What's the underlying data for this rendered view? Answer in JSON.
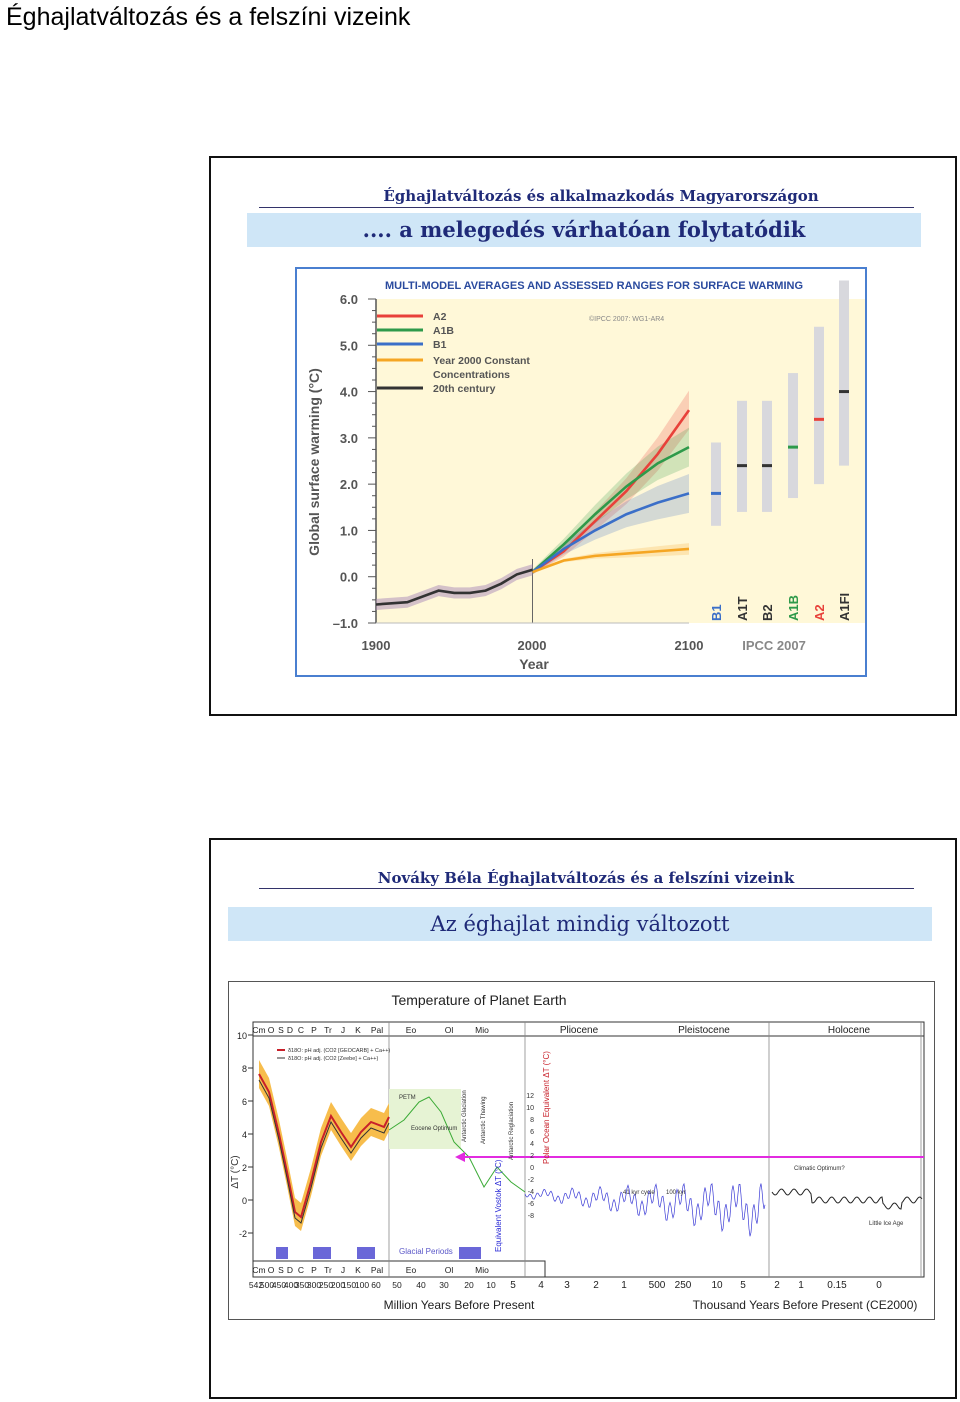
{
  "page_title": "Éghajlatváltozás és a felszíni vizeink",
  "slide1": {
    "header": "Éghajlatváltozás és alkalmazkodás Magyarországon",
    "banner": ".... a melegedés várhatóan folytatódik"
  },
  "slide2": {
    "header": "Nováky Béla Éghajlatváltozás és a felszíni vizeink",
    "banner": "Az éghajlat mindig változott"
  },
  "chart_data": [
    {
      "type": "line",
      "title": "MULTI-MODEL AVERAGES AND ASSESSED RANGES FOR SURFACE WARMING",
      "copyright": "©IPCC 2007: WG1-AR4",
      "source": "IPCC 2007",
      "xlabel": "Year",
      "ylabel": "Global surface warming (°C)",
      "xlim": [
        1900,
        2100
      ],
      "ylim": [
        -1.0,
        6.0
      ],
      "x_ticks": [
        "1900",
        "2000",
        "2100"
      ],
      "y_ticks": [
        "6.0",
        "5.0",
        "4.0",
        "3.0",
        "2.0",
        "1.0",
        "0.0",
        "–1.0"
      ],
      "legend_position": "top-left",
      "series": [
        {
          "name": "A2",
          "color": "#e8413a",
          "x": [
            2000,
            2020,
            2040,
            2060,
            2080,
            2100
          ],
          "y": [
            0.1,
            0.55,
            1.2,
            1.85,
            2.65,
            3.6
          ]
        },
        {
          "name": "A1B",
          "color": "#2e9a4a",
          "x": [
            2000,
            2020,
            2040,
            2060,
            2080,
            2100
          ],
          "y": [
            0.1,
            0.7,
            1.35,
            1.95,
            2.45,
            2.8
          ]
        },
        {
          "name": "B1",
          "color": "#3b6fc8",
          "x": [
            2000,
            2020,
            2040,
            2060,
            2080,
            2100
          ],
          "y": [
            0.1,
            0.6,
            1.0,
            1.35,
            1.6,
            1.8
          ]
        },
        {
          "name": "Year 2000 Constant Concentrations",
          "color": "#f5a623",
          "x": [
            2000,
            2020,
            2040,
            2060,
            2080,
            2100
          ],
          "y": [
            0.1,
            0.35,
            0.45,
            0.5,
            0.55,
            0.6
          ]
        },
        {
          "name": "20th century",
          "color": "#333333",
          "x": [
            1900,
            1920,
            1940,
            1950,
            1960,
            1970,
            1980,
            1990,
            2000
          ],
          "y": [
            -0.6,
            -0.55,
            -0.3,
            -0.35,
            -0.35,
            -0.3,
            -0.15,
            0.05,
            0.15
          ]
        }
      ],
      "scenario_ranges": [
        {
          "name": "B1",
          "color": "#3b6fc8",
          "low": 1.1,
          "best": 1.8,
          "high": 2.9
        },
        {
          "name": "A1T",
          "color": "#333333",
          "low": 1.4,
          "best": 2.4,
          "high": 3.8
        },
        {
          "name": "B2",
          "color": "#333333",
          "low": 1.4,
          "best": 2.4,
          "high": 3.8
        },
        {
          "name": "A1B",
          "color": "#2e9a4a",
          "low": 1.7,
          "best": 2.8,
          "high": 4.4
        },
        {
          "name": "A2",
          "color": "#e8413a",
          "low": 2.0,
          "best": 3.4,
          "high": 5.4
        },
        {
          "name": "A1FI",
          "color": "#333333",
          "low": 2.4,
          "best": 4.0,
          "high": 6.4
        }
      ]
    },
    {
      "type": "line",
      "title": "Temperature of Planet Earth",
      "xlabel_left": "Million Years Before Present",
      "xlabel_right": "Thousand Years Before Present (CE2000)",
      "ylabel": "ΔT (°C)",
      "ylim": [
        -2,
        10
      ],
      "y_ticks": [
        "10",
        "8",
        "6",
        "4",
        "2",
        "0",
        "-2"
      ],
      "period_labels_left": [
        "Cm",
        "O",
        "S",
        "D",
        "C",
        "P",
        "Tr",
        "J",
        "K",
        "Pal",
        "Eo",
        "Ol",
        "Mio"
      ],
      "period_labels_right": [
        "Pliocene",
        "Pleistocene",
        "Holocene"
      ],
      "x_ticks": [
        "542",
        "500",
        "450",
        "400",
        "350",
        "300",
        "250",
        "200",
        "150",
        "100",
        "60",
        "50",
        "40",
        "30",
        "20",
        "10",
        "5",
        "4",
        "3",
        "2",
        "1",
        "500",
        "250",
        "10",
        "5",
        "2",
        "1",
        "0.15",
        "0"
      ],
      "secondary_axis_ticks": [
        "12",
        "10",
        "8",
        "6",
        "4",
        "2",
        "0",
        "-2",
        "-4",
        "-6",
        "-8"
      ],
      "legend": [
        "δ18O: pH adj. (CO2 [GEOCARB] + Ca++)",
        "δ18O: pH adj. (CO2 [Zeebe] + Ca++)"
      ],
      "annotations": [
        "PETM",
        "Eocene Optimum",
        "Antarctic Glaciation",
        "Antarctic Thawing",
        "Antarctic Reglaciation",
        "Polar Ocean Equivalent ΔT (°C)",
        "Equivalent Vostok ΔT (°C)",
        "41 kyr cycle",
        "100 kyr",
        "Climatic Optimum?",
        "Little Ice Age",
        "Glacial Periods"
      ]
    }
  ]
}
